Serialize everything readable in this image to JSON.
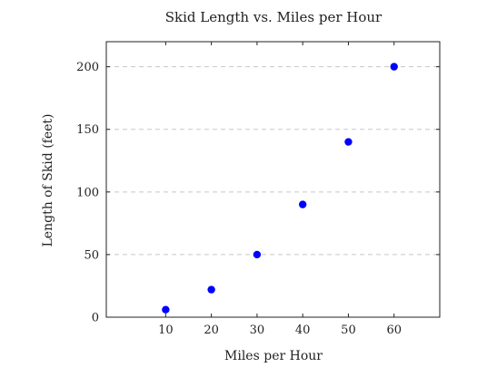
{
  "chart_data": {
    "type": "scatter",
    "title": "Skid Length vs. Miles per Hour",
    "xlabel": "Miles per Hour",
    "ylabel": "Length of Skid (feet)",
    "x": [
      10,
      20,
      30,
      40,
      50,
      60
    ],
    "y": [
      6,
      22,
      50,
      90,
      140,
      200
    ],
    "xlim": [
      -3,
      70
    ],
    "ylim": [
      0,
      220
    ],
    "xticks": [
      10,
      20,
      30,
      40,
      50,
      60
    ],
    "yticks": [
      0,
      50,
      100,
      150,
      200
    ],
    "grid": "horizontal dashed",
    "marker_color": "#0000ff"
  }
}
